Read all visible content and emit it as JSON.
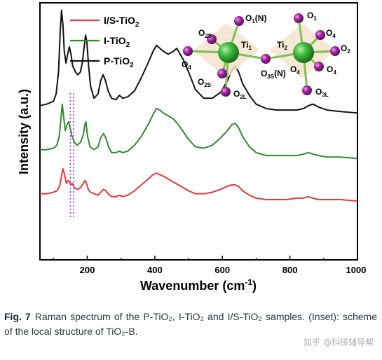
{
  "chart_data": {
    "type": "line",
    "xlabel": "Wavenumber (cm",
    "xlabel_sup": "-1",
    "xlabel_close": ")",
    "ylabel": "Intensity (a.u.)",
    "xlim": [
      60,
      1000
    ],
    "xticks": [
      200,
      400,
      600,
      800,
      1000
    ],
    "yticks_shown": false,
    "legend_position": "top-left",
    "series": [
      {
        "name": "I/S-TiO",
        "name_sub": "2",
        "color": "#e53935",
        "x": [
          60,
          80,
          100,
          110,
          118,
          124,
          128,
          133,
          138,
          143,
          148,
          152,
          156,
          162,
          170,
          180,
          188,
          194,
          198,
          203,
          210,
          220,
          232,
          240,
          248,
          255,
          262,
          272,
          285,
          295,
          305,
          320,
          340,
          360,
          380,
          395,
          405,
          415,
          425,
          440,
          455,
          470,
          485,
          500,
          520,
          545,
          570,
          595,
          615,
          628,
          638,
          648,
          660,
          680,
          700,
          730,
          760,
          790,
          820,
          840,
          855,
          868,
          885,
          910,
          950,
          1000
        ],
        "y": [
          5,
          5,
          6,
          7,
          10,
          17,
          22,
          18,
          12,
          14,
          13,
          11,
          12,
          9,
          8,
          9,
          12,
          14,
          12,
          8,
          6,
          5,
          4,
          6,
          8,
          7,
          5,
          3,
          3,
          4,
          3,
          4,
          7,
          11,
          15,
          18,
          19,
          18,
          17,
          15,
          13,
          11,
          9,
          7,
          5,
          5,
          6,
          8,
          10,
          11,
          11,
          10,
          7,
          4,
          2,
          1,
          1,
          1,
          2,
          2,
          3,
          2,
          1,
          1,
          1,
          0
        ]
      },
      {
        "name": "I-TiO",
        "name_sub": "2",
        "color": "#2e8b2e",
        "x": [
          60,
          80,
          100,
          110,
          117,
          122,
          126,
          130,
          135,
          140,
          145,
          150,
          155,
          162,
          170,
          180,
          188,
          193,
          196,
          201,
          208,
          220,
          232,
          240,
          248,
          255,
          263,
          272,
          285,
          295,
          305,
          320,
          340,
          360,
          380,
          395,
          405,
          415,
          425,
          440,
          455,
          470,
          485,
          500,
          520,
          545,
          570,
          595,
          615,
          628,
          638,
          648,
          660,
          680,
          700,
          730,
          760,
          790,
          820,
          840,
          855,
          868,
          885,
          910,
          950,
          1000
        ],
        "y": [
          35,
          35,
          36,
          38,
          44,
          56,
          66,
          58,
          48,
          52,
          54,
          49,
          44,
          40,
          38,
          40,
          45,
          52,
          54,
          44,
          37,
          35,
          37,
          43,
          46,
          43,
          37,
          33,
          33,
          34,
          33,
          34,
          38,
          44,
          52,
          59,
          63,
          62,
          60,
          58,
          56,
          52,
          47,
          42,
          37,
          36,
          38,
          43,
          48,
          52,
          53,
          50,
          44,
          37,
          33,
          31,
          31,
          31,
          31,
          32,
          33,
          32,
          31,
          30,
          30,
          29
        ]
      },
      {
        "name": "P-TiO",
        "name_sub": "2",
        "color": "#111111",
        "x": [
          60,
          80,
          100,
          108,
          115,
          120,
          124,
          128,
          132,
          137,
          142,
          147,
          152,
          157,
          165,
          172,
          180,
          186,
          191,
          195,
          199,
          204,
          210,
          220,
          232,
          240,
          247,
          254,
          262,
          272,
          285,
          295,
          305,
          320,
          340,
          360,
          380,
          395,
          405,
          415,
          425,
          440,
          455,
          465,
          475,
          485,
          500,
          520,
          545,
          570,
          595,
          615,
          628,
          638,
          648,
          660,
          680,
          700,
          730,
          760,
          790,
          820,
          840,
          855,
          868,
          885,
          910,
          950,
          1000
        ],
        "y": [
          65,
          66,
          68,
          73,
          88,
          115,
          130,
          120,
          102,
          94,
          100,
          105,
          100,
          92,
          88,
          86,
          88,
          95,
          105,
          113,
          108,
          92,
          78,
          70,
          73,
          82,
          86,
          82,
          75,
          70,
          69,
          72,
          70,
          71,
          75,
          84,
          94,
          102,
          106,
          104,
          102,
          100,
          102,
          104,
          100,
          96,
          88,
          76,
          70,
          70,
          74,
          82,
          89,
          92,
          88,
          80,
          72,
          66,
          63,
          62,
          62,
          62,
          63,
          65,
          66,
          64,
          62,
          61,
          60
        ]
      }
    ],
    "annotation_line_x": [
      150,
      160
    ],
    "inset": {
      "atoms": [
        {
          "text": "O",
          "sub": "1",
          "suffix": "(N)"
        },
        {
          "text": "O",
          "sub": "1",
          "suffix": ""
        },
        {
          "text": "O",
          "sub": "2S",
          "suffix": ""
        },
        {
          "text": "Ti",
          "sub": "1",
          "suffix": ""
        },
        {
          "text": "Ti",
          "sub": "2",
          "suffix": ""
        },
        {
          "text": "O",
          "sub": "4",
          "suffix": ""
        },
        {
          "text": "O",
          "sub": "4",
          "suffix": ""
        },
        {
          "text": "O",
          "sub": "2",
          "suffix": ""
        },
        {
          "text": "O",
          "sub": "4",
          "suffix": ""
        },
        {
          "text": "O",
          "sub": "2S",
          "suffix": ""
        },
        {
          "text": "O",
          "sub": "3S",
          "suffix": "(N)"
        },
        {
          "text": "O",
          "sub": "4",
          "suffix": ""
        },
        {
          "text": "O",
          "sub": "2L",
          "suffix": ""
        },
        {
          "text": "O",
          "sub": "3L",
          "suffix": ""
        }
      ],
      "ti_color": "#3dbb3d",
      "o_color": "#a626a4"
    }
  },
  "caption": {
    "fig_num": "Fig. 7",
    "text": "Raman spectrum of the P-TiO₂, I-TiO₂ and I/S-TiO₂ samples. (Inset): scheme of the local structure of TiO₂-B."
  },
  "watermark": "知乎 @科研辅导帮"
}
